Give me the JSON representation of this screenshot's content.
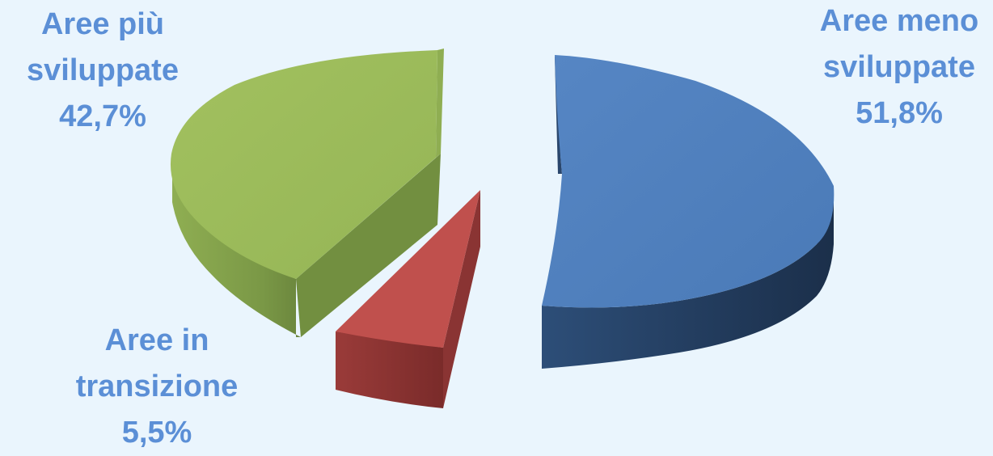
{
  "chart_data": {
    "type": "pie",
    "style": "3d-exploded",
    "slices": [
      {
        "name": "Aree meno sviluppate",
        "label_lines": [
          "Aree meno",
          "sviluppate"
        ],
        "value_label": "51,8%",
        "value": 51.8,
        "color": "#4f81bd"
      },
      {
        "name": "Aree in transizione",
        "label_lines": [
          "Aree in",
          "transizione"
        ],
        "value_label": "5,5%",
        "value": 5.5,
        "color": "#c0504d"
      },
      {
        "name": "Aree più sviluppate",
        "label_lines": [
          "Aree più",
          "sviluppate"
        ],
        "value_label": "42,7%",
        "value": 42.7,
        "color": "#9bbb59"
      }
    ],
    "label_color": "#5b8fd6",
    "background": "#eaf5fd"
  }
}
